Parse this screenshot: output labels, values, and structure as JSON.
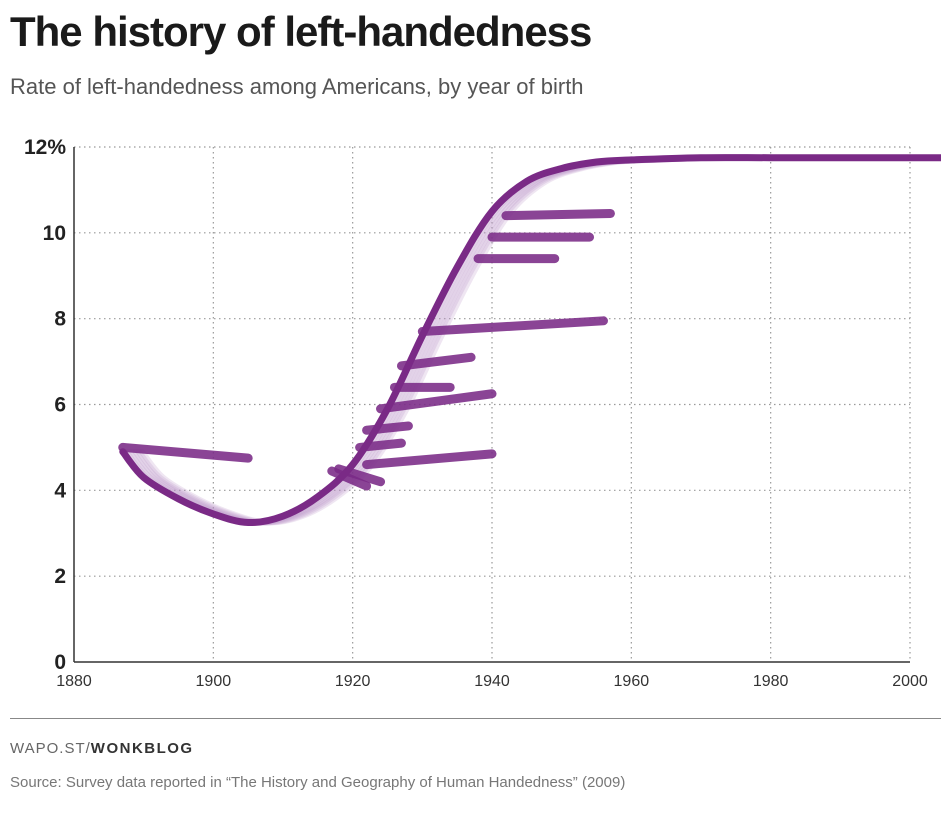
{
  "header": {
    "title": "The history of left-handedness",
    "subtitle": "Rate of left-handedness among Americans, by year of birth"
  },
  "footer": {
    "credit_prefix": "WAPO.ST/",
    "credit_brand": "WONKBLOG",
    "source": "Source: Survey data reported in “The History and Geography of Human Handedness” (2009)"
  },
  "colors": {
    "series": "#7a2a86",
    "series_light": "#b88fc2",
    "grid": "#999999",
    "axis": "#333333"
  },
  "chart_data": {
    "type": "line",
    "title": "The history of left-handedness",
    "subtitle": "Rate of left-handedness among Americans, by year of birth",
    "xlabel": "",
    "ylabel": "",
    "xlim": [
      1880,
      2000
    ],
    "ylim": [
      0,
      12
    ],
    "x_ticks": [
      1880,
      1900,
      1920,
      1940,
      1960,
      1980,
      2000
    ],
    "x_tick_labels": [
      "1880",
      "1900",
      "1920",
      "1940",
      "1960",
      "1980",
      "2000"
    ],
    "y_ticks": [
      0,
      2,
      4,
      6,
      8,
      10,
      12
    ],
    "y_tick_labels": [
      "0",
      "2",
      "4",
      "6",
      "8",
      "10",
      "12%"
    ],
    "grid": true,
    "series": [
      {
        "name": "Rate of left-handedness",
        "x": [
          1887,
          1890,
          1895,
          1900,
          1905,
          1910,
          1915,
          1920,
          1925,
          1930,
          1935,
          1940,
          1945,
          1950,
          1955,
          1960,
          1970,
          1980,
          1990,
          2005
        ],
        "y": [
          4.9,
          4.3,
          3.8,
          3.45,
          3.25,
          3.4,
          3.85,
          4.6,
          5.9,
          7.6,
          9.2,
          10.5,
          11.2,
          11.5,
          11.65,
          11.7,
          11.75,
          11.75,
          11.75,
          11.75
        ]
      }
    ],
    "annotations": [
      {
        "label": "survey cohort streaks",
        "segments": [
          {
            "x": [
              1887,
              1905
            ],
            "y": [
              5.0,
              4.75
            ]
          },
          {
            "x": [
              1917,
              1922
            ],
            "y": [
              4.45,
              4.1
            ]
          },
          {
            "x": [
              1918,
              1924
            ],
            "y": [
              4.5,
              4.2
            ]
          },
          {
            "x": [
              1922,
              1940
            ],
            "y": [
              4.6,
              4.85
            ]
          },
          {
            "x": [
              1921,
              1927
            ],
            "y": [
              5.0,
              5.1
            ]
          },
          {
            "x": [
              1922,
              1928
            ],
            "y": [
              5.4,
              5.5
            ]
          },
          {
            "x": [
              1924,
              1940
            ],
            "y": [
              5.9,
              6.25
            ]
          },
          {
            "x": [
              1926,
              1934
            ],
            "y": [
              6.4,
              6.4
            ]
          },
          {
            "x": [
              1927,
              1937
            ],
            "y": [
              6.9,
              7.1
            ]
          },
          {
            "x": [
              1930,
              1956
            ],
            "y": [
              7.7,
              7.95
            ]
          },
          {
            "x": [
              1938,
              1949
            ],
            "y": [
              9.4,
              9.4
            ]
          },
          {
            "x": [
              1940,
              1954
            ],
            "y": [
              9.9,
              9.9
            ]
          },
          {
            "x": [
              1942,
              1957
            ],
            "y": [
              10.4,
              10.45
            ]
          }
        ]
      }
    ]
  }
}
